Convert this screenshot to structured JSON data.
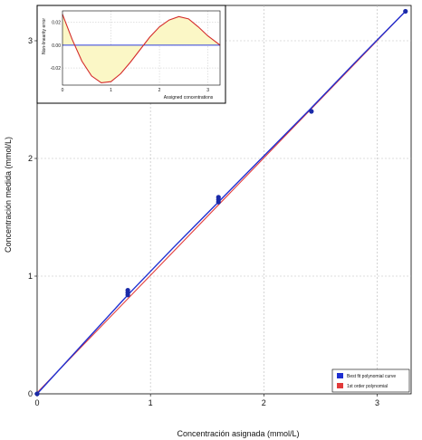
{
  "chart_data": [
    {
      "type": "scatter",
      "xlabel": "Concentración asignada (mmol/L)",
      "ylabel": "Concentración medida (mmol/L)",
      "xlim": [
        0,
        3.3
      ],
      "ylim": [
        0,
        3.3
      ],
      "xticks": [
        "0",
        "1",
        "2",
        "3"
      ],
      "yticks": [
        "0",
        "1",
        "2",
        "3"
      ],
      "grid": true,
      "legend_position": "bottom-right",
      "series": [
        {
          "name": "Best fit polynomial curve",
          "color": "#1f2fd1",
          "line": {
            "x": [
              0,
              0.4,
              0.8,
              1.2,
              1.6,
              2.0,
              2.4,
              2.8,
              3.25
            ],
            "y": [
              0,
              0.42,
              0.84,
              1.24,
              1.63,
              2.02,
              2.41,
              2.81,
              3.25
            ]
          },
          "points": {
            "x": [
              0,
              0.8,
              0.8,
              0.8,
              1.6,
              1.6,
              1.6,
              2.42,
              3.25
            ],
            "y": [
              0,
              0.84,
              0.86,
              0.88,
              1.63,
              1.65,
              1.67,
              2.4,
              3.25
            ]
          }
        },
        {
          "name": "1st order polynomial",
          "color": "#e23a3a",
          "line": {
            "x": [
              0,
              3.25
            ],
            "y": [
              0.01,
              3.25
            ]
          }
        }
      ]
    },
    {
      "type": "line",
      "xlabel": "Assigned concentrations",
      "ylabel": "Non-linearity error",
      "xlim": [
        0,
        3.25
      ],
      "ylim": [
        -0.035,
        0.03
      ],
      "xticks": [
        "0",
        "1",
        "2",
        "3"
      ],
      "yticks": [
        "0.02",
        "0.00",
        "-0.02"
      ],
      "ytick_values": [
        0.02,
        0.0,
        -0.02
      ],
      "grid": true,
      "series": [
        {
          "color": "#d42a2a",
          "fill": "#fbf7c6",
          "x": [
            0,
            0.2,
            0.4,
            0.6,
            0.8,
            1.0,
            1.2,
            1.4,
            1.6,
            1.8,
            2.0,
            2.2,
            2.4,
            2.6,
            2.8,
            3.0,
            3.25
          ],
          "y": [
            0.027,
            0.005,
            -0.014,
            -0.027,
            -0.033,
            -0.032,
            -0.025,
            -0.015,
            -0.004,
            0.007,
            0.016,
            0.022,
            0.025,
            0.023,
            0.016,
            0.008,
            0.0
          ]
        },
        {
          "color": "#2f3fdc",
          "x": [
            0,
            3.25
          ],
          "y": [
            0,
            0
          ]
        }
      ]
    }
  ]
}
